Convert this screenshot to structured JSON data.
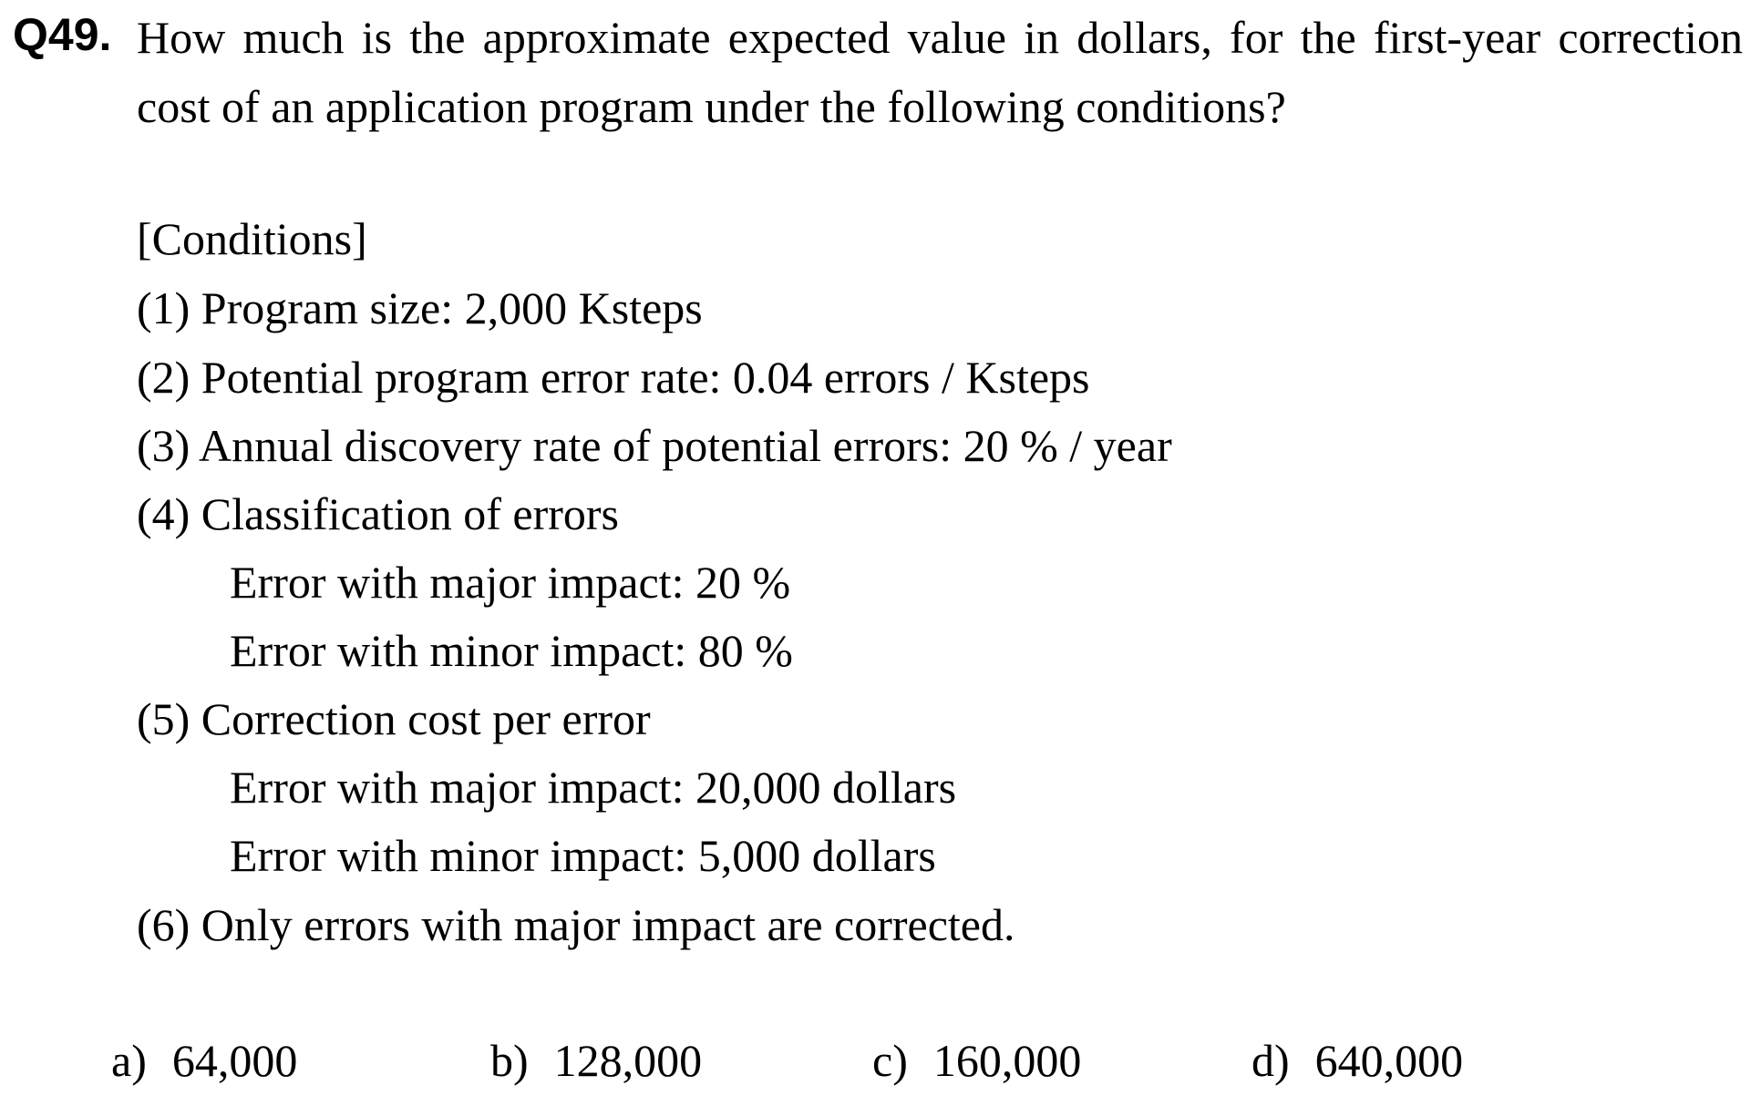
{
  "question": {
    "number": "Q49.",
    "line1": "How much is the approximate expected value in dollars, for the first-year correction",
    "line2": "cost of an application program under the following conditions?"
  },
  "conditions": {
    "heading": "[Conditions]",
    "items": [
      "(1) Program size: 2,000 Ksteps",
      "(2) Potential program error rate: 0.04 errors / Ksteps",
      "(3) Annual discovery rate of potential errors: 20 % / year",
      "(4) Classification of errors",
      "Error with major impact: 20 %",
      "Error with minor impact: 80 %",
      "(5) Correction cost per error",
      "Error with major impact: 20,000 dollars",
      "Error with minor impact: 5,000 dollars",
      "(6) Only errors with major impact are corrected."
    ]
  },
  "choices": [
    {
      "letter": "a)",
      "value": "64,000"
    },
    {
      "letter": "b)",
      "value": "128,000"
    },
    {
      "letter": "c)",
      "value": "160,000"
    },
    {
      "letter": "d)",
      "value": "640,000"
    }
  ]
}
